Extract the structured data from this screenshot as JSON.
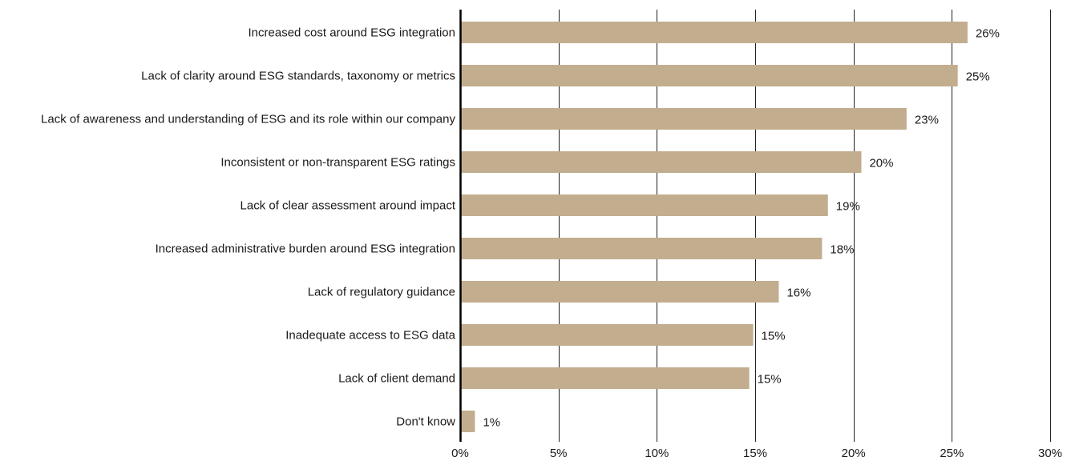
{
  "chart_data": {
    "type": "bar",
    "orientation": "horizontal",
    "categories": [
      "Increased cost around ESG integration",
      "Lack of clarity around ESG standards, taxonomy or metrics",
      "Lack of awareness and understanding of ESG and its role within our company",
      "Inconsistent or non-transparent ESG ratings",
      "Lack of clear assessment around impact",
      "Increased administrative burden around ESG integration",
      "Lack of regulatory guidance",
      "Inadequate access to ESG data",
      "Lack of client demand",
      "Don't know"
    ],
    "values": [
      25.8,
      25.3,
      22.7,
      20.4,
      18.7,
      18.4,
      16.2,
      14.9,
      14.7,
      0.75
    ],
    "value_labels": [
      "26%",
      "25%",
      "23%",
      "20%",
      "19%",
      "18%",
      "16%",
      "15%",
      "15%",
      "1%"
    ],
    "xlim": [
      0,
      30
    ],
    "x_ticks": [
      0,
      5,
      10,
      15,
      20,
      25,
      30
    ],
    "x_tick_labels": [
      "0%",
      "5%",
      "10%",
      "15%",
      "20%",
      "25%",
      "30%"
    ],
    "grid": "vertical",
    "legend": "none",
    "colors": {
      "bar": "#c3ad8f",
      "gridline": "#222222",
      "axis": "#000000",
      "text": "#1a1a1a"
    }
  }
}
